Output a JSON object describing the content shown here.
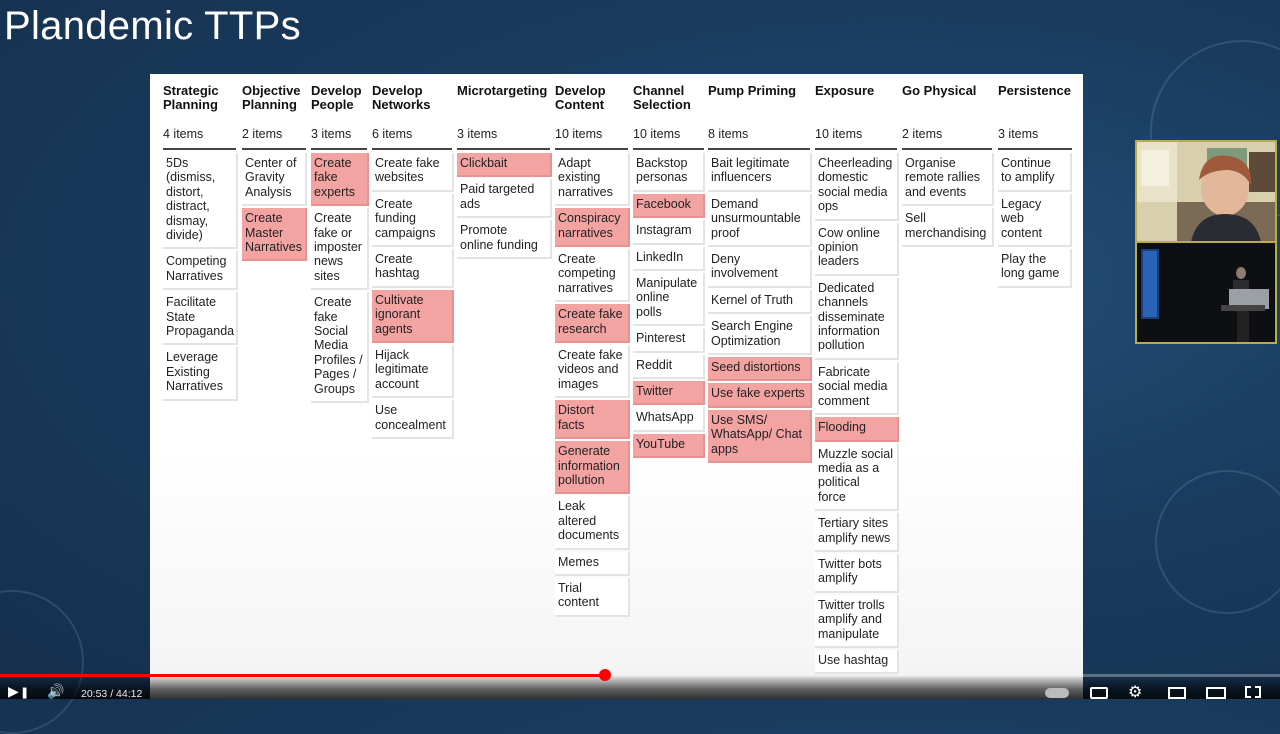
{
  "slide": {
    "title": "Plandemic TTPs"
  },
  "columns": [
    {
      "title": "Strategic\nPlanning",
      "count": "4 items",
      "cards": [
        {
          "text": "5Ds\n(dismiss,\ndistort,\ndistract,\ndismay,\ndivide)",
          "highlighted": false
        },
        {
          "text": "Competing\nNarratives",
          "highlighted": false
        },
        {
          "text": "Facilitate\nState\nPropaganda",
          "highlighted": false
        },
        {
          "text": "Leverage\nExisting\nNarratives",
          "highlighted": false
        }
      ]
    },
    {
      "title": "Objective\nPlanning",
      "count": "2 items",
      "cards": [
        {
          "text": "Center of\nGravity\nAnalysis",
          "highlighted": false
        },
        {
          "text": "Create\nMaster\nNarratives",
          "highlighted": true
        }
      ]
    },
    {
      "title": "Develop\nPeople",
      "count": "3 items",
      "cards": [
        {
          "text": "Create\nfake\nexperts",
          "highlighted": true
        },
        {
          "text": "Create\nfake or\nimposter\nnews\nsites",
          "highlighted": false
        },
        {
          "text": "Create\nfake\nSocial\nMedia\nProfiles /\nPages /\nGroups",
          "highlighted": false
        }
      ]
    },
    {
      "title": "Develop\nNetworks",
      "count": "6 items",
      "cards": [
        {
          "text": "Create fake\nwebsites",
          "highlighted": false
        },
        {
          "text": "Create\nfunding\ncampaigns",
          "highlighted": false
        },
        {
          "text": "Create\nhashtag",
          "highlighted": false
        },
        {
          "text": "Cultivate\nignorant\nagents",
          "highlighted": true
        },
        {
          "text": "Hijack\nlegitimate\naccount",
          "highlighted": false
        },
        {
          "text": "Use\nconcealment",
          "highlighted": false
        }
      ]
    },
    {
      "title": "Microtargeting",
      "count": "3 items",
      "cards": [
        {
          "text": "Clickbait",
          "highlighted": true
        },
        {
          "text": "Paid targeted\nads",
          "highlighted": false
        },
        {
          "text": "Promote\nonline funding",
          "highlighted": false
        }
      ]
    },
    {
      "title": "Develop\nContent",
      "count": "10 items",
      "cards": [
        {
          "text": "Adapt\nexisting\nnarratives",
          "highlighted": false
        },
        {
          "text": "Conspiracy\nnarratives",
          "highlighted": true
        },
        {
          "text": "Create\ncompeting\nnarratives",
          "highlighted": false
        },
        {
          "text": "Create fake\nresearch",
          "highlighted": true
        },
        {
          "text": "Create fake\nvideos and\nimages",
          "highlighted": false
        },
        {
          "text": "Distort\nfacts",
          "highlighted": true
        },
        {
          "text": "Generate\ninformation\npollution",
          "highlighted": true
        },
        {
          "text": "Leak\naltered\ndocuments",
          "highlighted": false
        },
        {
          "text": "Memes",
          "highlighted": false
        },
        {
          "text": "Trial\ncontent",
          "highlighted": false
        }
      ]
    },
    {
      "title": "Channel\nSelection",
      "count": "10 items",
      "cards": [
        {
          "text": "Backstop\npersonas",
          "highlighted": false
        },
        {
          "text": "Facebook",
          "highlighted": true
        },
        {
          "text": "Instagram",
          "highlighted": false
        },
        {
          "text": "LinkedIn",
          "highlighted": false
        },
        {
          "text": "Manipulate\nonline\npolls",
          "highlighted": false
        },
        {
          "text": "Pinterest",
          "highlighted": false
        },
        {
          "text": "Reddit",
          "highlighted": false
        },
        {
          "text": "Twitter",
          "highlighted": true
        },
        {
          "text": "WhatsApp",
          "highlighted": false
        },
        {
          "text": "YouTube",
          "highlighted": true
        }
      ]
    },
    {
      "title": "Pump Priming",
      "count": "8 items",
      "cards": [
        {
          "text": "Bait legitimate\ninfluencers",
          "highlighted": false
        },
        {
          "text": "Demand\nunsurmountable\nproof",
          "highlighted": false
        },
        {
          "text": "Deny\ninvolvement",
          "highlighted": false
        },
        {
          "text": "Kernel of Truth",
          "highlighted": false
        },
        {
          "text": "Search Engine\nOptimization",
          "highlighted": false
        },
        {
          "text": "Seed distortions",
          "highlighted": true
        },
        {
          "text": "Use fake experts",
          "highlighted": true
        },
        {
          "text": "Use SMS/\nWhatsApp/ Chat\napps",
          "highlighted": true
        }
      ]
    },
    {
      "title": "Exposure",
      "count": "10 items",
      "cards": [
        {
          "text": "Cheerleading\ndomestic\nsocial media\nops",
          "highlighted": false
        },
        {
          "text": "Cow online\nopinion\nleaders",
          "highlighted": false
        },
        {
          "text": "Dedicated\nchannels\ndisseminate\ninformation\npollution",
          "highlighted": false
        },
        {
          "text": "Fabricate\nsocial media\ncomment",
          "highlighted": false
        },
        {
          "text": "Flooding",
          "highlighted": true
        },
        {
          "text": "Muzzle social\nmedia as a\npolitical\nforce",
          "highlighted": false
        },
        {
          "text": "Tertiary sites\namplify news",
          "highlighted": false
        },
        {
          "text": "Twitter bots\namplify",
          "highlighted": false
        },
        {
          "text": "Twitter trolls\namplify and\nmanipulate",
          "highlighted": false
        },
        {
          "text": "Use hashtag",
          "highlighted": false
        }
      ]
    },
    {
      "title": "Go Physical",
      "count": "2 items",
      "cards": [
        {
          "text": "Organise\nremote rallies\nand events",
          "highlighted": false
        },
        {
          "text": "Sell\nmerchandising",
          "highlighted": false
        }
      ]
    },
    {
      "title": "Persistence",
      "count": "3 items",
      "cards": [
        {
          "text": "Continue\nto amplify",
          "highlighted": false
        },
        {
          "text": "Legacy\nweb\ncontent",
          "highlighted": false
        },
        {
          "text": "Play the\nlong game",
          "highlighted": false
        }
      ]
    }
  ],
  "player": {
    "time_display": "20:53 / 44:12",
    "progress": 0.4725,
    "icons": {
      "play": "play-icon",
      "next": "next-icon",
      "volume": "volume-icon",
      "autoplay": "autoplay-toggle-icon",
      "subtitles": "subtitles-icon",
      "settings": "gear-icon",
      "miniplayer": "miniplayer-icon",
      "theater": "theater-mode-icon",
      "fullscreen": "fullscreen-icon"
    }
  },
  "colors": {
    "highlight": "#f4a3a3",
    "background": "#1b3a5c",
    "progress": "#ff0000"
  }
}
